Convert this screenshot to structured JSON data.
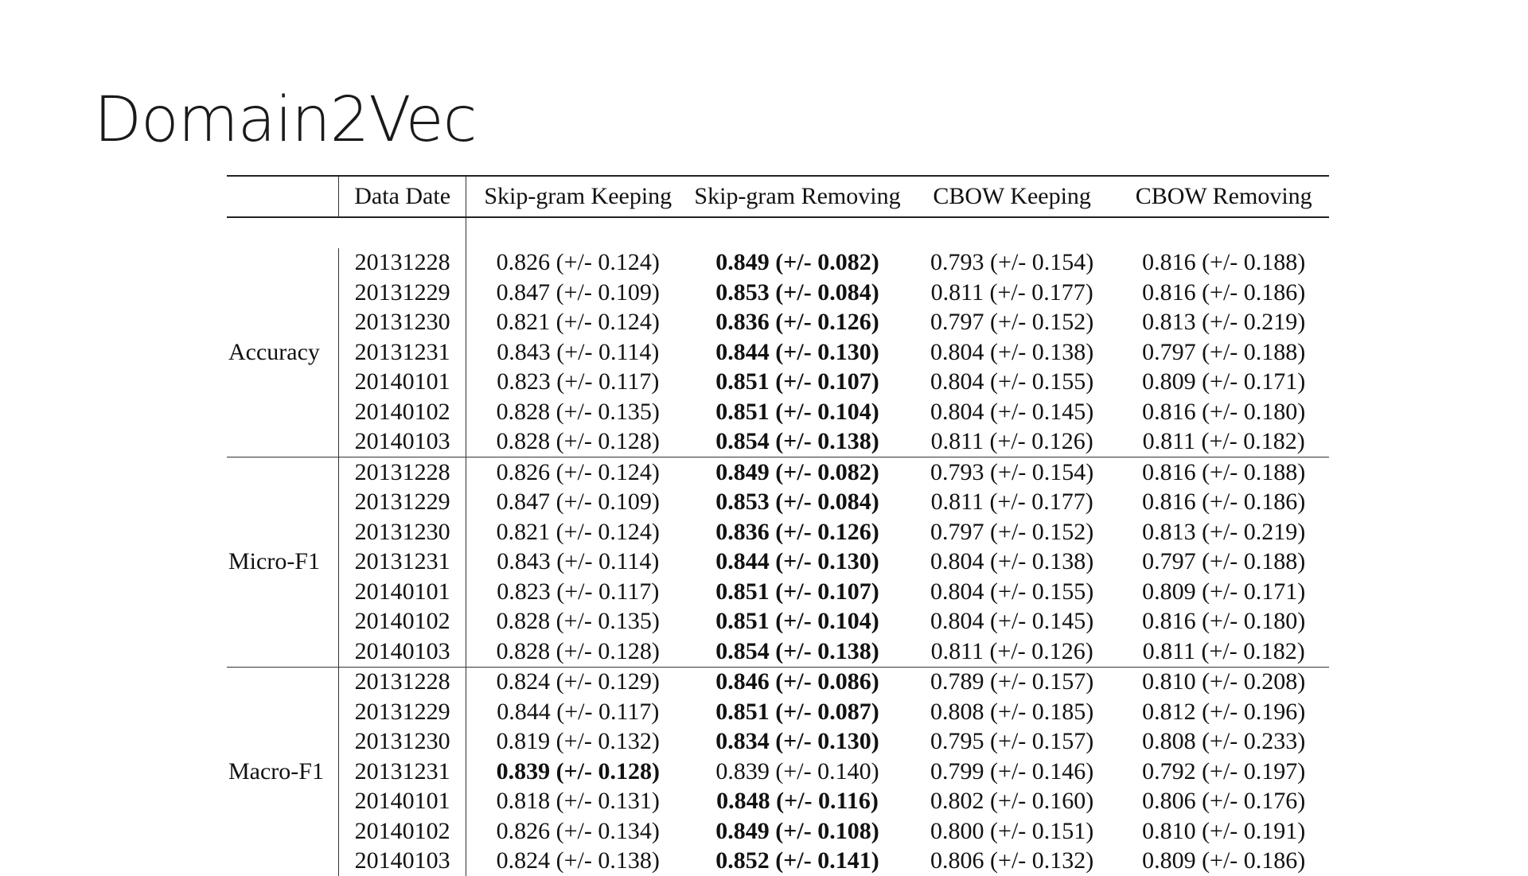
{
  "title": "Domain2Vec",
  "table": {
    "headers": [
      "",
      "Data Date",
      "Skip-gram Keeping",
      "Skip-gram Removing",
      "CBOW Keeping",
      "CBOW Removing"
    ],
    "groups": [
      {
        "metric": "Accuracy",
        "rows": [
          {
            "date": "20131228",
            "values": [
              "0.826 (+/- 0.124)",
              "0.849 (+/- 0.082)",
              "0.793 (+/- 0.154)",
              "0.816 (+/- 0.188)"
            ],
            "bold": 1
          },
          {
            "date": "20131229",
            "values": [
              "0.847 (+/- 0.109)",
              "0.853 (+/- 0.084)",
              "0.811 (+/- 0.177)",
              "0.816 (+/- 0.186)"
            ],
            "bold": 1
          },
          {
            "date": "20131230",
            "values": [
              "0.821 (+/- 0.124)",
              "0.836 (+/- 0.126)",
              "0.797 (+/- 0.152)",
              "0.813 (+/- 0.219)"
            ],
            "bold": 1
          },
          {
            "date": "20131231",
            "values": [
              "0.843 (+/- 0.114)",
              "0.844 (+/- 0.130)",
              "0.804 (+/- 0.138)",
              "0.797 (+/- 0.188)"
            ],
            "bold": 1
          },
          {
            "date": "20140101",
            "values": [
              "0.823 (+/- 0.117)",
              "0.851 (+/- 0.107)",
              "0.804 (+/- 0.155)",
              "0.809 (+/- 0.171)"
            ],
            "bold": 1
          },
          {
            "date": "20140102",
            "values": [
              "0.828 (+/- 0.135)",
              "0.851 (+/- 0.104)",
              "0.804 (+/- 0.145)",
              "0.816 (+/- 0.180)"
            ],
            "bold": 1
          },
          {
            "date": "20140103",
            "values": [
              "0.828 (+/- 0.128)",
              "0.854 (+/- 0.138)",
              "0.811 (+/- 0.126)",
              "0.811 (+/- 0.182)"
            ],
            "bold": 1
          }
        ]
      },
      {
        "metric": "Micro-F1",
        "rows": [
          {
            "date": "20131228",
            "values": [
              "0.826 (+/- 0.124)",
              "0.849 (+/- 0.082)",
              "0.793 (+/- 0.154)",
              "0.816 (+/- 0.188)"
            ],
            "bold": 1
          },
          {
            "date": "20131229",
            "values": [
              "0.847 (+/- 0.109)",
              "0.853 (+/- 0.084)",
              "0.811 (+/- 0.177)",
              "0.816 (+/- 0.186)"
            ],
            "bold": 1
          },
          {
            "date": "20131230",
            "values": [
              "0.821 (+/- 0.124)",
              "0.836 (+/- 0.126)",
              "0.797 (+/- 0.152)",
              "0.813 (+/- 0.219)"
            ],
            "bold": 1
          },
          {
            "date": "20131231",
            "values": [
              "0.843 (+/- 0.114)",
              "0.844 (+/- 0.130)",
              "0.804 (+/- 0.138)",
              "0.797 (+/- 0.188)"
            ],
            "bold": 1
          },
          {
            "date": "20140101",
            "values": [
              "0.823 (+/- 0.117)",
              "0.851 (+/- 0.107)",
              "0.804 (+/- 0.155)",
              "0.809 (+/- 0.171)"
            ],
            "bold": 1
          },
          {
            "date": "20140102",
            "values": [
              "0.828 (+/- 0.135)",
              "0.851 (+/- 0.104)",
              "0.804 (+/- 0.145)",
              "0.816 (+/- 0.180)"
            ],
            "bold": 1
          },
          {
            "date": "20140103",
            "values": [
              "0.828 (+/- 0.128)",
              "0.854 (+/- 0.138)",
              "0.811 (+/- 0.126)",
              "0.811 (+/- 0.182)"
            ],
            "bold": 1
          }
        ]
      },
      {
        "metric": "Macro-F1",
        "rows": [
          {
            "date": "20131228",
            "values": [
              "0.824 (+/- 0.129)",
              "0.846 (+/- 0.086)",
              "0.789 (+/- 0.157)",
              "0.810 (+/- 0.208)"
            ],
            "bold": 1
          },
          {
            "date": "20131229",
            "values": [
              "0.844 (+/- 0.117)",
              "0.851 (+/- 0.087)",
              "0.808 (+/- 0.185)",
              "0.812 (+/- 0.196)"
            ],
            "bold": 1
          },
          {
            "date": "20131230",
            "values": [
              "0.819 (+/- 0.132)",
              "0.834 (+/- 0.130)",
              "0.795 (+/- 0.157)",
              "0.808 (+/- 0.233)"
            ],
            "bold": 1
          },
          {
            "date": "20131231",
            "values": [
              "0.839 (+/- 0.128)",
              "0.839 (+/- 0.140)",
              "0.799 (+/- 0.146)",
              "0.792 (+/- 0.197)"
            ],
            "bold": 0
          },
          {
            "date": "20140101",
            "values": [
              "0.818 (+/- 0.131)",
              "0.848 (+/- 0.116)",
              "0.802 (+/- 0.160)",
              "0.806 (+/- 0.176)"
            ],
            "bold": 1
          },
          {
            "date": "20140102",
            "values": [
              "0.826 (+/- 0.134)",
              "0.849 (+/- 0.108)",
              "0.800 (+/- 0.151)",
              "0.810 (+/- 0.191)"
            ],
            "bold": 1
          },
          {
            "date": "20140103",
            "values": [
              "0.824 (+/- 0.138)",
              "0.852 (+/- 0.141)",
              "0.806 (+/- 0.132)",
              "0.809 (+/- 0.186)"
            ],
            "bold": 1
          }
        ]
      }
    ]
  }
}
